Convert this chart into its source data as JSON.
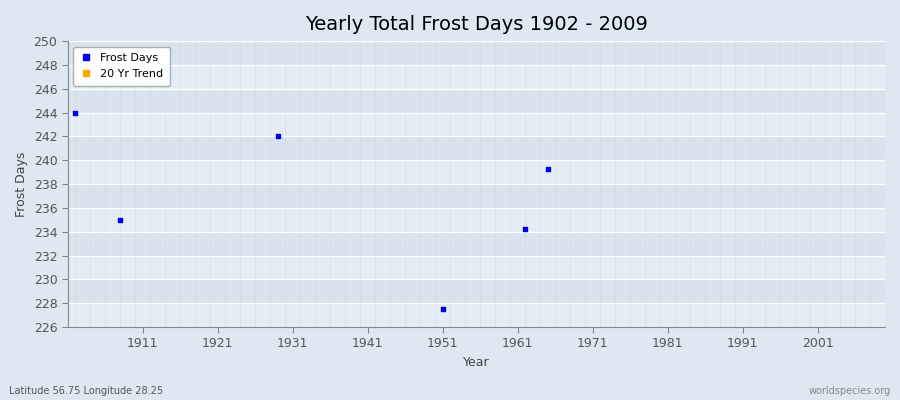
{
  "title": "Yearly Total Frost Days 1902 - 2009",
  "xlabel": "Year",
  "ylabel": "Frost Days",
  "xlim": [
    1901,
    2010
  ],
  "ylim": [
    226,
    250
  ],
  "yticks": [
    226,
    228,
    230,
    232,
    234,
    236,
    238,
    240,
    242,
    244,
    246,
    248,
    250
  ],
  "xticks": [
    1911,
    1921,
    1931,
    1941,
    1951,
    1961,
    1971,
    1981,
    1991,
    2001
  ],
  "scatter_x": [
    1902,
    1908,
    1929,
    1951,
    1962,
    1965
  ],
  "scatter_y": [
    244,
    235,
    242,
    227.5,
    234.2,
    239.3
  ],
  "scatter_color": "#0000ee",
  "trend_color": "#FFA500",
  "bg_outer": "#dde8f2",
  "bg_plot_light": "#e4edf5",
  "bg_plot_dark": "#d8e3ed",
  "grid_major_color": "#ffffff",
  "grid_minor_color": "#c8d4df",
  "title_fontsize": 14,
  "label_fontsize": 9,
  "tick_fontsize": 9,
  "footnote_left": "Latitude 56.75 Longitude 28.25",
  "footnote_right": "worldspecies.org",
  "legend_labels": [
    "Frost Days",
    "20 Yr Trend"
  ]
}
